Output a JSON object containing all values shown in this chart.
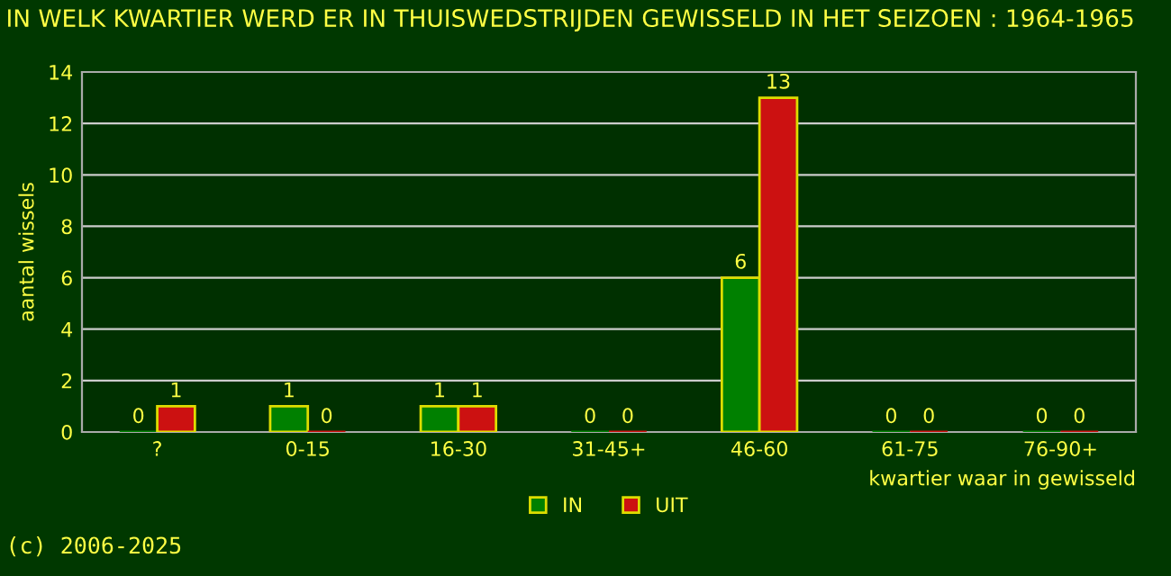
{
  "chart_data": {
    "type": "bar",
    "title": "IN WELK KWARTIER WERD ER IN THUISWEDSTRIJDEN GEWISSELD IN HET SEIZOEN : 1964-1965",
    "xlabel": "kwartier waar in gewisseld",
    "ylabel": "aantal wissels",
    "categories": [
      "?",
      "0-15",
      "16-30",
      "31-45+",
      "46-60",
      "61-75",
      "76-90+"
    ],
    "series": [
      {
        "name": "IN",
        "color": "#008000",
        "values": [
          0,
          1,
          1,
          0,
          6,
          0,
          0
        ]
      },
      {
        "name": "UIT",
        "color": "#cc1111",
        "values": [
          1,
          0,
          1,
          0,
          13,
          0,
          0
        ]
      }
    ],
    "ylim": [
      0,
      14
    ],
    "yticks": [
      0,
      2,
      4,
      6,
      8,
      10,
      12,
      14
    ],
    "grid": "y",
    "legend": "bottom",
    "data_labels": true,
    "annotations": [
      "(c) 2006-2025"
    ]
  }
}
